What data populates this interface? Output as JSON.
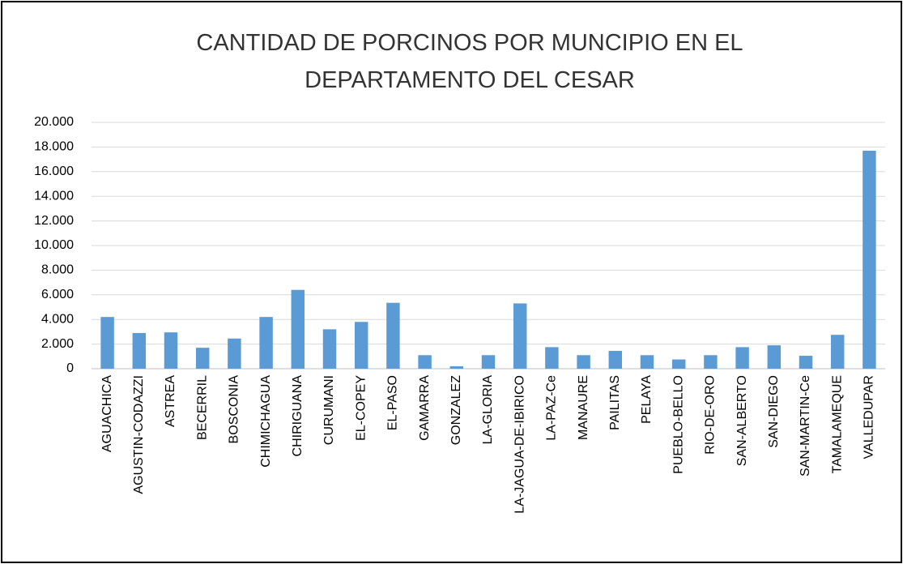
{
  "chart_data": {
    "type": "bar",
    "title": "CANTIDAD DE PORCINOS POR MUNCIPIO EN EL DEPARTAMENTO DEL CESAR",
    "categories": [
      "AGUACHICA",
      "AGUSTIN-CODAZZI",
      "ASTREA",
      "BECERRIL",
      "BOSCONIA",
      "CHIMICHAGUA",
      "CHIRIGUANA",
      "CURUMANI",
      "EL-COPEY",
      "EL-PASO",
      "GAMARRA",
      "GONZALEZ",
      "LA-GLORIA",
      "LA-JAGUA-DE-IBIRICO",
      "LA-PAZ-Ce",
      "MANAURE",
      "PAILITAS",
      "PELAYA",
      "PUEBLO-BELLO",
      "RIO-DE-ORO",
      "SAN-ALBERTO",
      "SAN-DIEGO",
      "SAN-MARTIN-Ce",
      "TAMALAMEQUE",
      "VALLEDUPAR"
    ],
    "values": [
      4200,
      2900,
      2950,
      1700,
      2450,
      4200,
      6400,
      3200,
      3800,
      5350,
      1100,
      200,
      1100,
      5300,
      1750,
      1100,
      1450,
      1100,
      750,
      1100,
      1750,
      1900,
      1050,
      2750,
      17700
    ],
    "color": "#5b9bd5",
    "ylim": [
      0,
      20000
    ],
    "yticks": [
      0,
      {
        "value": 2000,
        "label": "2.000"
      },
      {
        "value": 4000,
        "label": "4.000"
      },
      {
        "value": 6000,
        "label": "6.000"
      },
      {
        "value": 8000,
        "label": "8.000"
      },
      {
        "value": 10000,
        "label": "10.000"
      },
      {
        "value": 12000,
        "label": "12.000"
      },
      {
        "value": 14000,
        "label": "14.000"
      },
      {
        "value": 16000,
        "label": "16.000"
      },
      {
        "value": 18000,
        "label": "18.000"
      },
      {
        "value": 20000,
        "label": "20.000"
      }
    ],
    "grid": true
  }
}
